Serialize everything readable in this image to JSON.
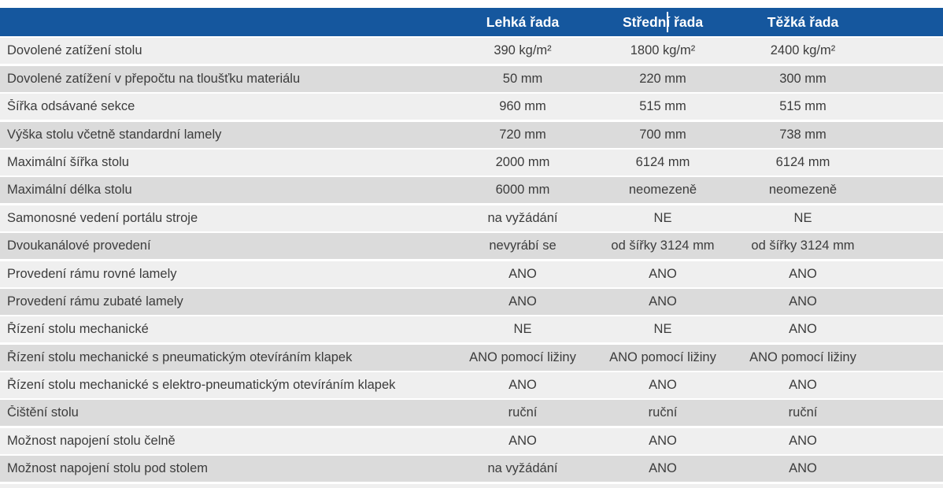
{
  "colors": {
    "header_bg": "#15579E",
    "header_text": "#FFFFFF",
    "row_light": "#EFEFEF",
    "row_dark": "#DBDBDB",
    "text": "#3C3C3C"
  },
  "chart_data": {
    "type": "table",
    "title": "",
    "columns": [
      "",
      "Lehká řada",
      "Střední řada",
      "Těžká řada"
    ],
    "rows": [
      {
        "label": "Dovolené zatížení stolu",
        "values": [
          "390 kg/m²",
          "1800 kg/m²",
          "2400 kg/m²"
        ]
      },
      {
        "label": "Dovolené zatížení v přepočtu na tloušťku materiálu",
        "values": [
          "50 mm",
          "220 mm",
          "300 mm"
        ]
      },
      {
        "label": "Šířka odsávané sekce",
        "values": [
          "960 mm",
          "515 mm",
          "515 mm"
        ]
      },
      {
        "label": "Výška stolu včetně standardní lamely",
        "values": [
          "720 mm",
          "700 mm",
          "738 mm"
        ]
      },
      {
        "label": "Maximální šířka stolu",
        "values": [
          "2000 mm",
          "6124 mm",
          "6124 mm"
        ]
      },
      {
        "label": "Maximální délka stolu",
        "values": [
          "6000 mm",
          "neomezeně",
          "neomezeně"
        ]
      },
      {
        "label": "Samonosné vedení portálu stroje",
        "values": [
          "na vyžádání",
          "NE",
          "NE"
        ]
      },
      {
        "label": "Dvoukanálové provedení",
        "values": [
          "nevyrábí se",
          "od šířky 3124 mm",
          "od šířky 3124 mm"
        ]
      },
      {
        "label": "Provedení rámu rovné lamely",
        "values": [
          "ANO",
          "ANO",
          "ANO"
        ]
      },
      {
        "label": "Provedení rámu zubaté lamely",
        "values": [
          "ANO",
          "ANO",
          "ANO"
        ]
      },
      {
        "label": "Řízení stolu mechanické",
        "values": [
          "NE",
          "NE",
          "ANO"
        ]
      },
      {
        "label": "Řízení stolu mechanické s pneumatickým otevíráním klapek",
        "values": [
          "ANO pomocí ližiny",
          "ANO pomocí ližiny",
          "ANO pomocí ližiny"
        ]
      },
      {
        "label": "Řízení stolu mechanické s elektro-pneumatickým otevíráním klapek",
        "values": [
          "ANO",
          "ANO",
          "ANO"
        ]
      },
      {
        "label": "Čištění stolu",
        "values": [
          "ruční",
          "ruční",
          "ruční"
        ]
      },
      {
        "label": "Možnost napojení stolu čelně",
        "values": [
          "ANO",
          "ANO",
          "ANO"
        ]
      },
      {
        "label": "Možnost napojení stolu pod stolem",
        "values": [
          "na vyžádání",
          "ANO",
          "ANO"
        ]
      }
    ]
  }
}
